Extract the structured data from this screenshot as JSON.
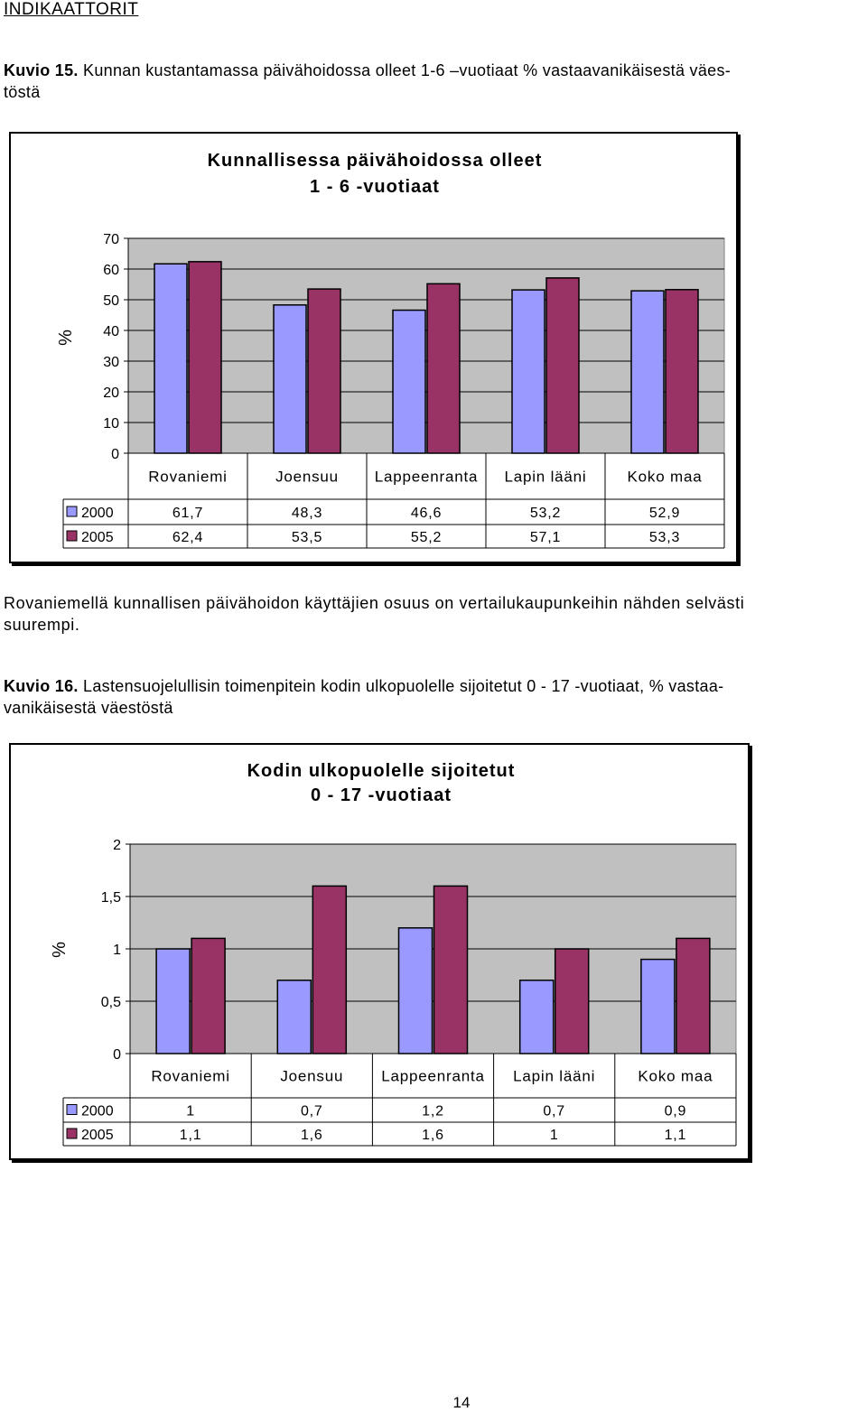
{
  "header": {
    "title": "INDIKAATTORIT"
  },
  "figure15": {
    "caption_label": "Kuvio 15.",
    "caption_text": "Kunnan kustantamassa päivähoidossa olleet 1-6 –vuotiaat % vastaavanikäisestä väes-",
    "caption_text_2": "töstä"
  },
  "figure16": {
    "caption_label": "Kuvio 16.",
    "caption_text": "Lastensuojelullisin toimenpitein kodin ulkopuolelle sijoitetut 0 - 17 -vuotiaat, % vastaa-",
    "caption_text_2": "vanikäisestä väestöstä"
  },
  "paragraph": {
    "line1": "Rovaniemellä kunnallisen päivähoidon käyttäjien osuus on vertailukaupunkeihin nähden selvästi",
    "line2": "suurempi."
  },
  "page_number": "14",
  "colors": {
    "series2000": "#9999ff",
    "series2005": "#993366",
    "plot_bg": "#c0c0c0"
  },
  "chart_data": [
    {
      "type": "bar",
      "title_line1": "Kunnallisessa päivähoidossa olleet",
      "title_line2": "1 - 6 -vuotiaat",
      "ylabel": "%",
      "ylim": [
        0,
        70
      ],
      "yticks": [
        0,
        10,
        20,
        30,
        40,
        50,
        60,
        70
      ],
      "ytick_labels": [
        "0",
        "10",
        "20",
        "30",
        "40",
        "50",
        "60",
        "70"
      ],
      "categories": [
        "Rovaniemi",
        "Joensuu",
        "Lappeenranta",
        "Lapin lääni",
        "Koko maa"
      ],
      "series": [
        {
          "name": "2000",
          "values": [
            61.7,
            48.3,
            46.6,
            53.2,
            52.9
          ],
          "labels": [
            "61,7",
            "48,3",
            "46,6",
            "53,2",
            "52,9"
          ]
        },
        {
          "name": "2005",
          "values": [
            62.4,
            53.5,
            55.2,
            57.1,
            53.3
          ],
          "labels": [
            "62,4",
            "53,5",
            "55,2",
            "57,1",
            "53,3"
          ]
        }
      ],
      "legend": "data-table"
    },
    {
      "type": "bar",
      "title_line1": "Kodin ulkopuolelle sijoitetut",
      "title_line2": "0 - 17 -vuotiaat",
      "ylabel": "%",
      "ylim": [
        0,
        2
      ],
      "yticks": [
        0,
        0.5,
        1,
        1.5,
        2
      ],
      "ytick_labels": [
        "0",
        "0,5",
        "1",
        "1,5",
        "2"
      ],
      "categories": [
        "Rovaniemi",
        "Joensuu",
        "Lappeenranta",
        "Lapin lääni",
        "Koko maa"
      ],
      "series": [
        {
          "name": "2000",
          "values": [
            1,
            0.7,
            1.2,
            0.7,
            0.9
          ],
          "labels": [
            "1",
            "0,7",
            "1,2",
            "0,7",
            "0,9"
          ]
        },
        {
          "name": "2005",
          "values": [
            1.1,
            1.6,
            1.6,
            1,
            1.1
          ],
          "labels": [
            "1,1",
            "1,6",
            "1,6",
            "1",
            "1,1"
          ]
        }
      ],
      "legend": "data-table"
    }
  ]
}
